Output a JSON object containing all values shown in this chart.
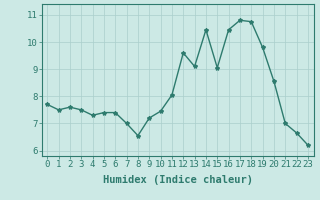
{
  "x": [
    0,
    1,
    2,
    3,
    4,
    5,
    6,
    7,
    8,
    9,
    10,
    11,
    12,
    13,
    14,
    15,
    16,
    17,
    18,
    19,
    20,
    21,
    22,
    23
  ],
  "y": [
    7.7,
    7.5,
    7.6,
    7.5,
    7.3,
    7.4,
    7.4,
    7.0,
    6.55,
    7.2,
    7.45,
    8.05,
    9.6,
    9.1,
    10.45,
    9.05,
    10.45,
    10.8,
    10.75,
    9.8,
    8.55,
    7.0,
    6.65,
    6.2
  ],
  "line_color": "#2e7b6e",
  "marker": "*",
  "marker_size": 3,
  "background_color": "#cce9e5",
  "grid_color": "#aacfcc",
  "xlabel": "Humidex (Indice chaleur)",
  "xlabel_fontsize": 7.5,
  "xlim": [
    -0.5,
    23.5
  ],
  "ylim": [
    5.8,
    11.4
  ],
  "yticks": [
    6,
    7,
    8,
    9,
    10,
    11
  ],
  "xticks": [
    0,
    1,
    2,
    3,
    4,
    5,
    6,
    7,
    8,
    9,
    10,
    11,
    12,
    13,
    14,
    15,
    16,
    17,
    18,
    19,
    20,
    21,
    22,
    23
  ],
  "tick_fontsize": 6.5,
  "line_width": 1.0,
  "spine_color": "#2e7b6e",
  "tick_color": "#2e7b6e",
  "label_color": "#2e7b6e"
}
